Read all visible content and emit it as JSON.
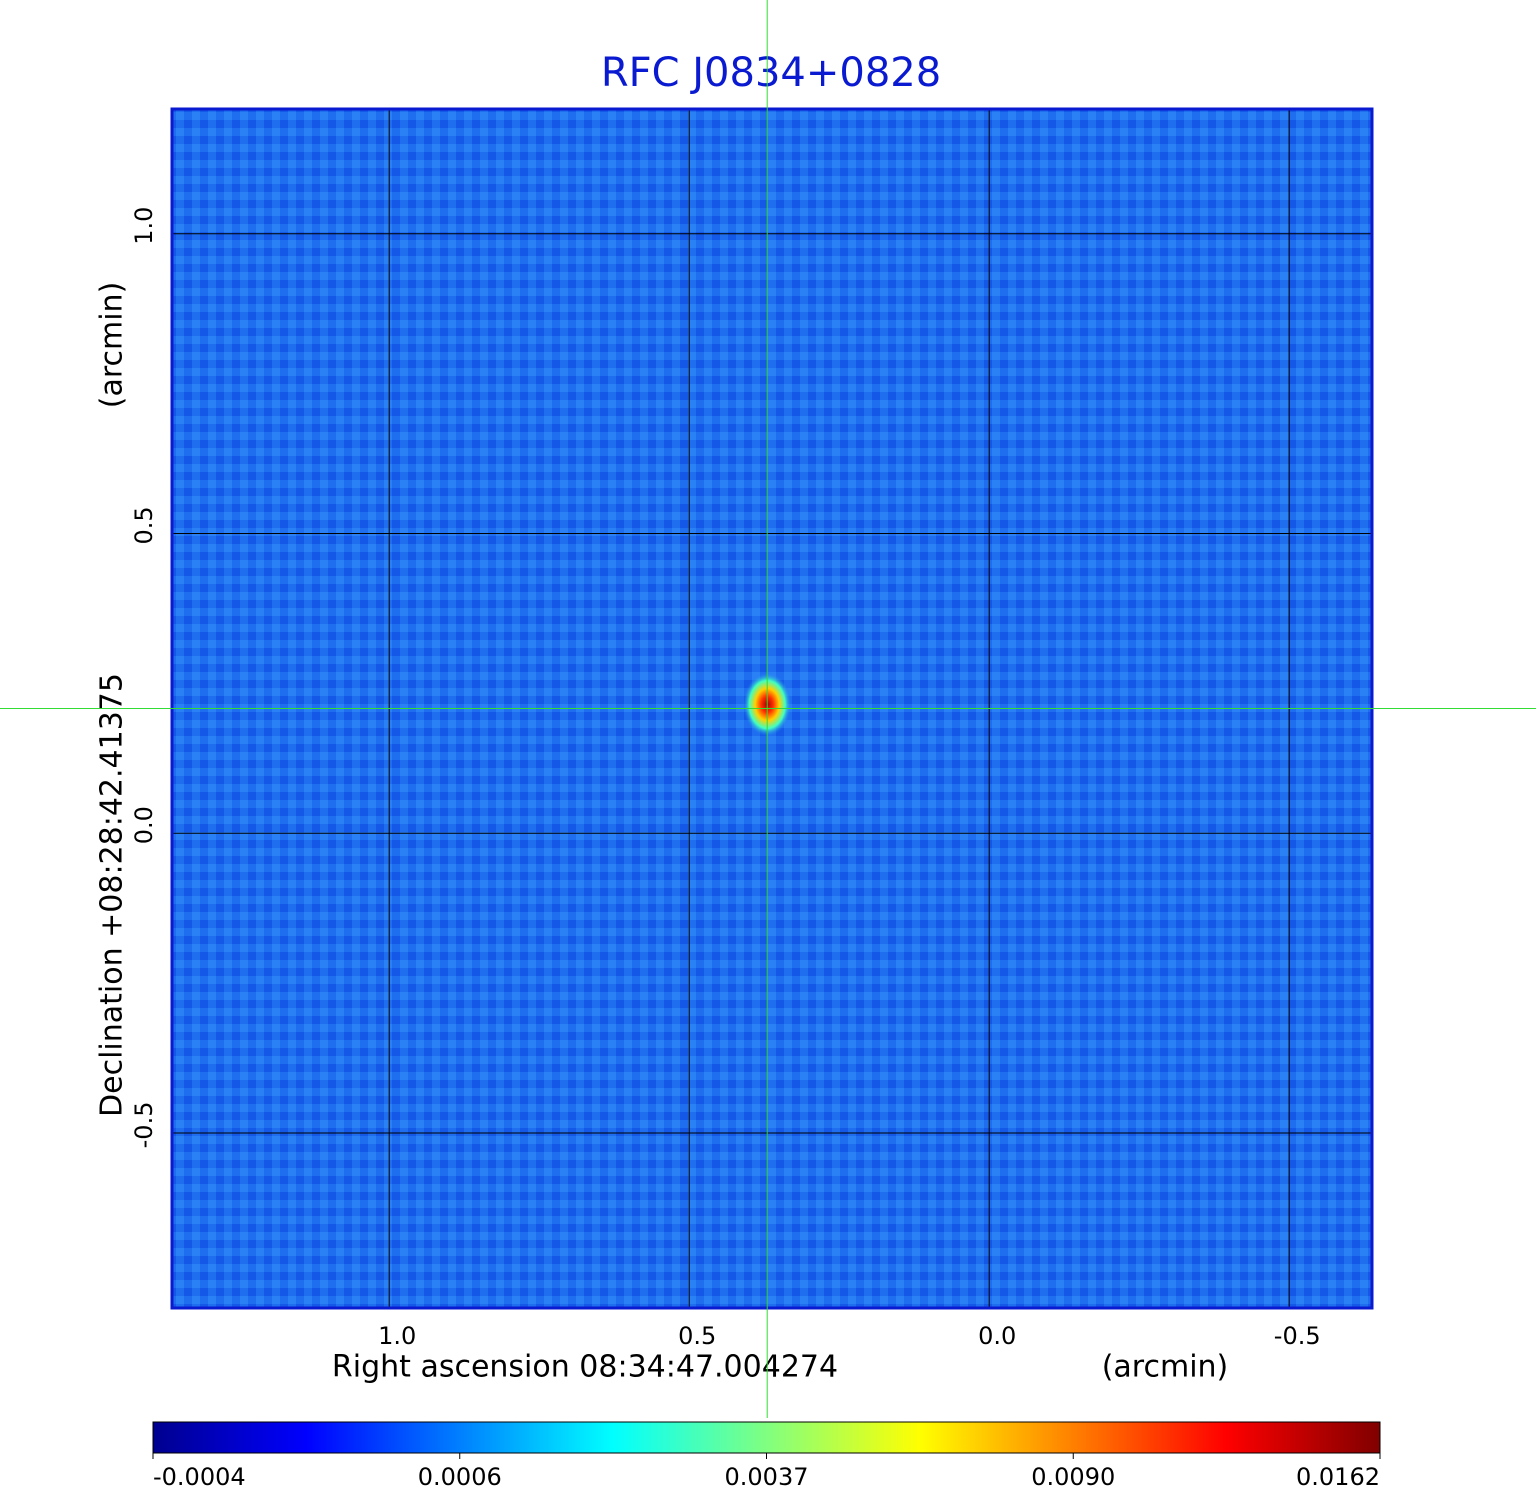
{
  "chart_data": {
    "type": "image",
    "title": "RFC J0834+0828",
    "x_label": "Right ascension  08:34:47.004274",
    "x_unit": "(arcmin)",
    "y_label": "Declination  +08:28:42.41375",
    "y_unit": "(arcmin)",
    "xlim": [
      1.362,
      -0.638
    ],
    "ylim": [
      -0.792,
      1.208
    ],
    "xticks": [
      {
        "value": 1.0,
        "label": "1.0"
      },
      0.5,
      {
        "value": 0.0,
        "label": "0.0"
      },
      -0.5
    ],
    "yticks": [
      -0.5,
      {
        "value": 0.0,
        "label": "0.0"
      },
      0.5,
      {
        "value": 1.0,
        "label": "1.0"
      }
    ],
    "grid": true,
    "crosshair": {
      "x": 0.37,
      "y": 0.208
    },
    "source": {
      "x": 0.37,
      "y": 0.208,
      "value": 0.0162
    },
    "colorbar": {
      "colormap": "jet",
      "ticks": [
        -0.0004,
        0.0006,
        0.0037,
        {
          "value": 0.009,
          "label": "0.0090"
        },
        0.0162
      ]
    }
  }
}
